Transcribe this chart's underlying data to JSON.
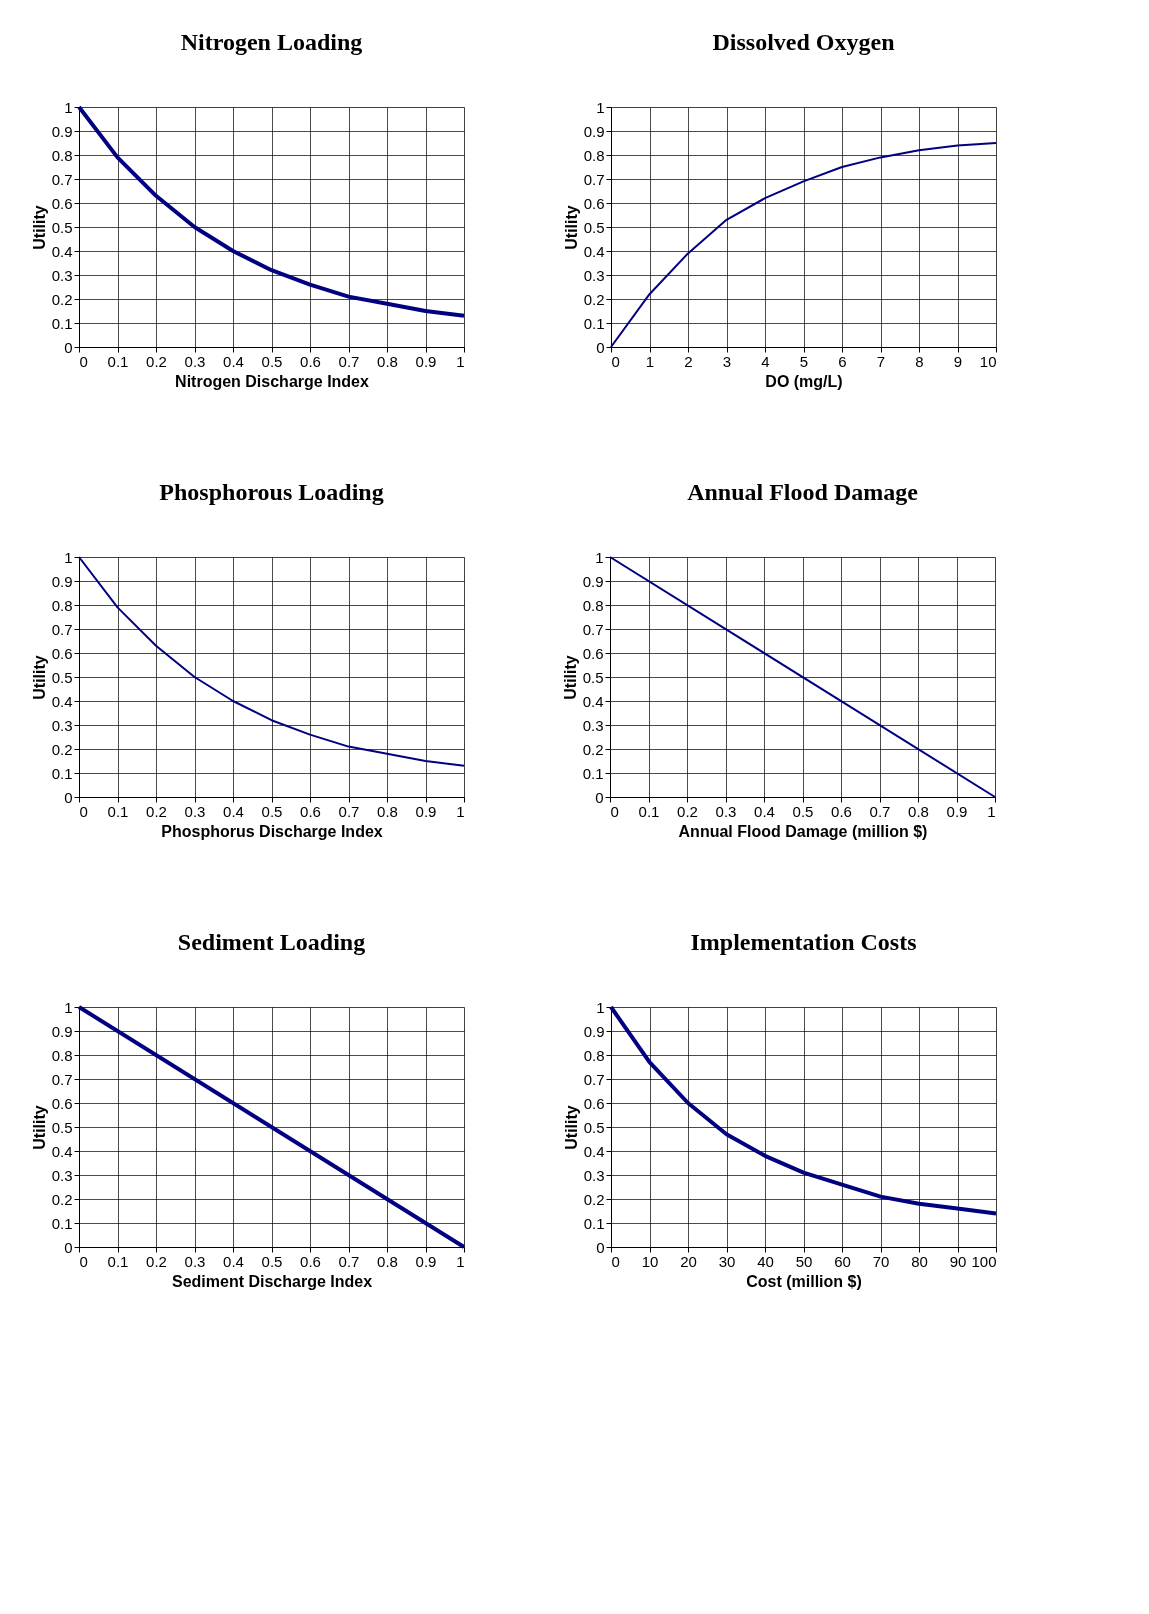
{
  "chart_data": [
    {
      "type": "line",
      "title": "Nitrogen Loading",
      "xlabel": "Nitrogen Discharge Index",
      "ylabel": "Utility",
      "x": [
        0,
        0.1,
        0.2,
        0.3,
        0.4,
        0.5,
        0.6,
        0.7,
        0.8,
        0.9,
        1
      ],
      "series": [
        {
          "color": "#000080",
          "values": [
            1,
            0.79,
            0.63,
            0.5,
            0.4,
            0.32,
            0.26,
            0.21,
            0.18,
            0.15,
            0.13
          ]
        }
      ],
      "xlim": [
        0,
        1
      ],
      "ylim": [
        0,
        1
      ],
      "xticks": [
        0,
        0.1,
        0.2,
        0.3,
        0.4,
        0.5,
        0.6,
        0.7,
        0.8,
        0.9,
        1
      ],
      "yticks": [
        0,
        0.1,
        0.2,
        0.3,
        0.4,
        0.5,
        0.6,
        0.7,
        0.8,
        0.9,
        1
      ],
      "grid": true
    },
    {
      "type": "line",
      "title": "Dissolved Oxygen",
      "xlabel": "DO (mg/L)",
      "ylabel": "Utility",
      "x": [
        0,
        1,
        2,
        3,
        4,
        5,
        6,
        7,
        8,
        9,
        10
      ],
      "series": [
        {
          "color": "#000080",
          "values": [
            0,
            0.22,
            0.39,
            0.53,
            0.62,
            0.69,
            0.75,
            0.79,
            0.82,
            0.84,
            0.85
          ]
        }
      ],
      "xlim": [
        0,
        10
      ],
      "ylim": [
        0,
        1
      ],
      "xticks": [
        0,
        1,
        2,
        3,
        4,
        5,
        6,
        7,
        8,
        9,
        10
      ],
      "yticks": [
        0,
        0.1,
        0.2,
        0.3,
        0.4,
        0.5,
        0.6,
        0.7,
        0.8,
        0.9,
        1
      ],
      "grid": true
    },
    {
      "type": "line",
      "title": "Phosphorous Loading",
      "xlabel": "Phosphorus Discharge Index",
      "ylabel": "Utility",
      "x": [
        0,
        0.1,
        0.2,
        0.3,
        0.4,
        0.5,
        0.6,
        0.7,
        0.8,
        0.9,
        1
      ],
      "series": [
        {
          "color": "#000080",
          "values": [
            1,
            0.79,
            0.63,
            0.5,
            0.4,
            0.32,
            0.26,
            0.21,
            0.18,
            0.15,
            0.13
          ]
        }
      ],
      "xlim": [
        0,
        1
      ],
      "ylim": [
        0,
        1
      ],
      "xticks": [
        0,
        0.1,
        0.2,
        0.3,
        0.4,
        0.5,
        0.6,
        0.7,
        0.8,
        0.9,
        1
      ],
      "yticks": [
        0,
        0.1,
        0.2,
        0.3,
        0.4,
        0.5,
        0.6,
        0.7,
        0.8,
        0.9,
        1
      ],
      "grid": true
    },
    {
      "type": "line",
      "title": "Annual Flood Damage",
      "xlabel": "Annual Flood Damage (million $)",
      "ylabel": "Utility",
      "x": [
        0,
        1
      ],
      "series": [
        {
          "color": "#000080",
          "values": [
            1,
            0
          ]
        }
      ],
      "xlim": [
        0,
        1
      ],
      "ylim": [
        0,
        1
      ],
      "xticks": [
        0,
        0.1,
        0.2,
        0.3,
        0.4,
        0.5,
        0.6,
        0.7,
        0.8,
        0.9,
        1
      ],
      "yticks": [
        0,
        0.1,
        0.2,
        0.3,
        0.4,
        0.5,
        0.6,
        0.7,
        0.8,
        0.9,
        1
      ],
      "grid": true
    },
    {
      "type": "line",
      "title": "Sediment Loading",
      "xlabel": "Sediment Discharge Index",
      "ylabel": "Utility",
      "x": [
        0,
        1
      ],
      "series": [
        {
          "color": "#000080",
          "values": [
            1,
            0
          ]
        }
      ],
      "xlim": [
        0,
        1
      ],
      "ylim": [
        0,
        1
      ],
      "xticks": [
        0,
        0.1,
        0.2,
        0.3,
        0.4,
        0.5,
        0.6,
        0.7,
        0.8,
        0.9,
        1
      ],
      "yticks": [
        0,
        0.1,
        0.2,
        0.3,
        0.4,
        0.5,
        0.6,
        0.7,
        0.8,
        0.9,
        1
      ],
      "grid": true
    },
    {
      "type": "line",
      "title": "Implementation Costs",
      "xlabel": "Cost (million $)",
      "ylabel": "Utility",
      "x": [
        0,
        10,
        20,
        30,
        40,
        50,
        60,
        70,
        80,
        90,
        100
      ],
      "series": [
        {
          "color": "#000080",
          "values": [
            1,
            0.77,
            0.6,
            0.47,
            0.38,
            0.31,
            0.26,
            0.21,
            0.18,
            0.16,
            0.14
          ]
        }
      ],
      "xlim": [
        0,
        100
      ],
      "ylim": [
        0,
        1
      ],
      "xticks": [
        0,
        10,
        20,
        30,
        40,
        50,
        60,
        70,
        80,
        90,
        100
      ],
      "yticks": [
        0,
        0.1,
        0.2,
        0.3,
        0.4,
        0.5,
        0.6,
        0.7,
        0.8,
        0.9,
        1
      ],
      "grid": true
    }
  ]
}
